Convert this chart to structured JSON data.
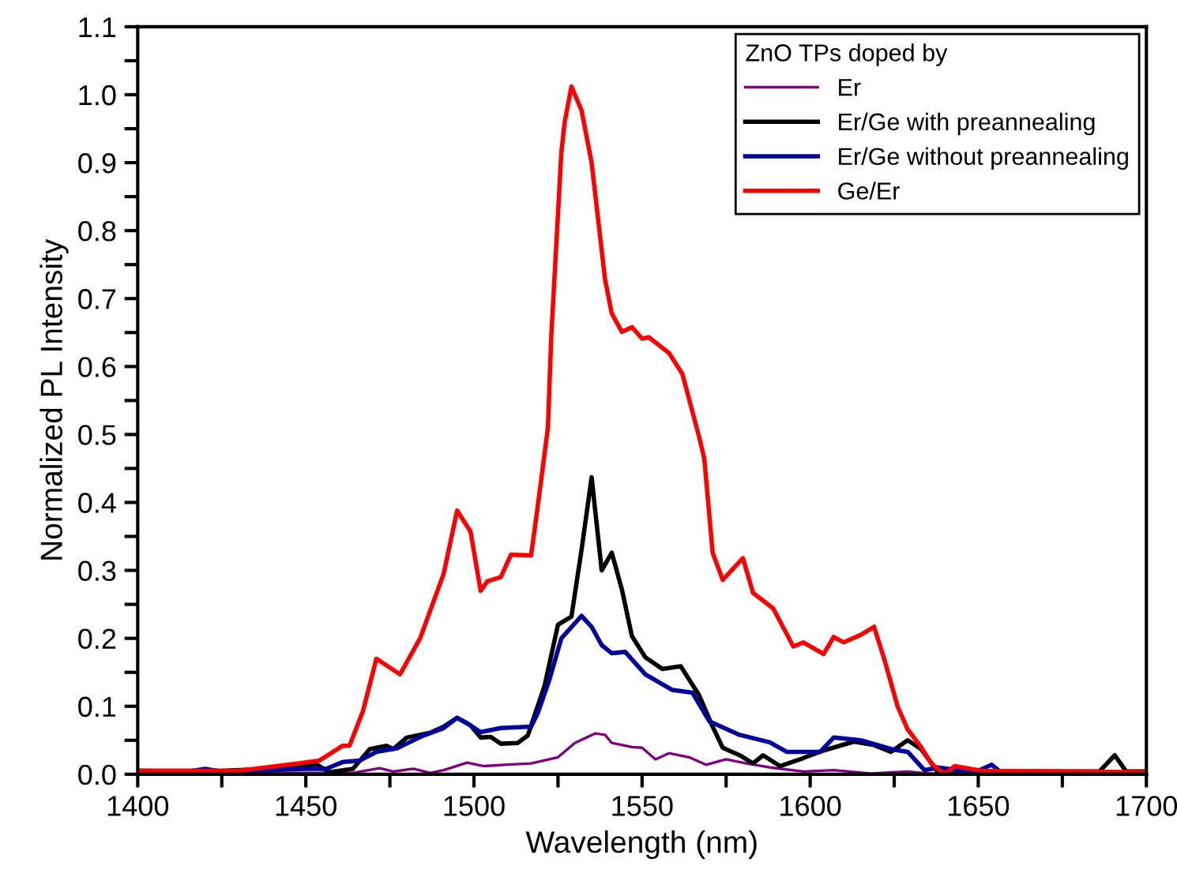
{
  "chart_data": {
    "type": "line",
    "xlabel": "Wavelength (nm)",
    "ylabel": "Normalized PL Intensity",
    "legend_title": "ZnO TPs doped by",
    "legend": "top right",
    "grid": false,
    "marker": "none",
    "line_style": "solid",
    "xlim": [
      1400,
      1700
    ],
    "ylim": [
      0,
      1.1
    ],
    "xticks": [
      1400,
      {
        "value": 1425,
        "label": null
      },
      1450,
      {
        "value": 1475,
        "label": null
      },
      1500,
      {
        "value": 1525,
        "label": null
      },
      1550,
      {
        "value": 1575,
        "label": null
      },
      1600,
      {
        "value": 1625,
        "label": null
      },
      1650,
      {
        "value": 1675,
        "label": null
      },
      1700
    ],
    "yticks": [
      {
        "value": 0,
        "label": "0.0"
      },
      {
        "value": 0.05,
        "label": null
      },
      {
        "value": 0.1,
        "label": "0.1"
      },
      {
        "value": 0.15,
        "label": null
      },
      {
        "value": 0.2,
        "label": "0.2"
      },
      {
        "value": 0.25,
        "label": null
      },
      {
        "value": 0.3,
        "label": "0.3"
      },
      {
        "value": 0.35,
        "label": null
      },
      {
        "value": 0.4,
        "label": "0.4"
      },
      {
        "value": 0.45,
        "label": null
      },
      {
        "value": 0.5,
        "label": "0.5"
      },
      {
        "value": 0.55,
        "label": null
      },
      {
        "value": 0.6,
        "label": "0.6"
      },
      {
        "value": 0.65,
        "label": null
      },
      {
        "value": 0.7,
        "label": "0.7"
      },
      {
        "value": 0.75,
        "label": null
      },
      {
        "value": 0.8,
        "label": "0.8"
      },
      {
        "value": 0.85,
        "label": null
      },
      {
        "value": 0.9,
        "label": "0.9"
      },
      {
        "value": 0.95,
        "label": null
      },
      {
        "value": 1.0,
        "label": "1.0"
      },
      {
        "value": 1.05,
        "label": null
      },
      {
        "value": 1.1,
        "label": "1.1"
      }
    ],
    "series": [
      {
        "name": "Er",
        "color": "#800080",
        "x": [
          1400,
          1430,
          1464,
          1472,
          1476,
          1482,
          1487,
          1491,
          1498,
          1503,
          1509,
          1517,
          1525,
          1530,
          1536,
          1539,
          1541,
          1547,
          1550,
          1554,
          1558,
          1564,
          1569,
          1575,
          1581,
          1588,
          1598,
          1607,
          1618,
          1629,
          1635,
          1700
        ],
        "values": [
          0.002,
          0.002,
          0.002,
          0.009,
          0.004,
          0.008,
          0.002,
          0.006,
          0.017,
          0.012,
          0.014,
          0.016,
          0.025,
          0.046,
          0.06,
          0.058,
          0.046,
          0.04,
          0.039,
          0.022,
          0.031,
          0.025,
          0.014,
          0.022,
          0.016,
          0.01,
          0.004,
          0.006,
          0.001,
          0.004,
          0.001,
          0.002
        ]
      },
      {
        "name": "Er/Ge with preannealing",
        "color": "#000000",
        "x": [
          1400,
          1425,
          1448,
          1453,
          1457,
          1464,
          1469,
          1474,
          1476,
          1480,
          1487,
          1491,
          1495,
          1499,
          1502,
          1505,
          1508,
          1513,
          1516,
          1521,
          1525,
          1529,
          1532,
          1535,
          1538,
          1541,
          1544,
          1547,
          1551,
          1556,
          1561.5,
          1567,
          1571,
          1574,
          1579,
          1583,
          1586,
          1591,
          1597.5,
          1604,
          1613,
          1619,
          1624,
          1629,
          1633,
          1638,
          1643,
          1657,
          1686,
          1690.6,
          1694,
          1700
        ],
        "values": [
          0.005,
          0.005,
          0.01,
          0.015,
          0.003,
          0.008,
          0.037,
          0.042,
          0.037,
          0.054,
          0.061,
          0.07,
          0.083,
          0.072,
          0.054,
          0.055,
          0.045,
          0.046,
          0.057,
          0.13,
          0.22,
          0.232,
          0.33,
          0.437,
          0.3,
          0.326,
          0.272,
          0.203,
          0.172,
          0.155,
          0.159,
          0.116,
          0.07,
          0.039,
          0.028,
          0.016,
          0.028,
          0.012,
          0.023,
          0.035,
          0.048,
          0.043,
          0.033,
          0.05,
          0.037,
          0.003,
          0.0,
          0.004,
          0.004,
          0.028,
          0.004,
          0.004
        ]
      },
      {
        "name": "Er/Ge without preannealing",
        "color": "#0000a0",
        "x": [
          1400,
          1415,
          1420,
          1425,
          1450,
          1456,
          1461,
          1466,
          1471,
          1477,
          1485,
          1491,
          1495,
          1498,
          1502,
          1508,
          1517,
          1519,
          1522.5,
          1526,
          1532,
          1535,
          1538,
          1541,
          1545,
          1551,
          1559,
          1565,
          1570,
          1579,
          1588,
          1593,
          1603,
          1607,
          1615,
          1625,
          1629,
          1634,
          1638,
          1644,
          1649,
          1654,
          1657,
          1700
        ],
        "values": [
          0.005,
          0.004,
          0.008,
          0.004,
          0.008,
          0.008,
          0.018,
          0.02,
          0.033,
          0.038,
          0.057,
          0.068,
          0.083,
          0.075,
          0.062,
          0.068,
          0.07,
          0.09,
          0.14,
          0.2,
          0.233,
          0.217,
          0.19,
          0.178,
          0.18,
          0.147,
          0.124,
          0.12,
          0.078,
          0.058,
          0.047,
          0.033,
          0.033,
          0.054,
          0.05,
          0.036,
          0.033,
          0.006,
          0.01,
          0.006,
          0.003,
          0.014,
          0.002,
          0.002
        ]
      },
      {
        "name": "Ge/Er",
        "color": "#ff0000",
        "x": [
          1400,
          1430,
          1448,
          1454,
          1461,
          1463,
          1467,
          1471,
          1478,
          1484,
          1491,
          1495,
          1499,
          1502,
          1504,
          1508,
          1511,
          1517,
          1519,
          1522,
          1523,
          1526,
          1527,
          1529,
          1532,
          1535,
          1539,
          1541,
          1544,
          1547,
          1550,
          1552,
          1558,
          1562,
          1567,
          1568.5,
          1571,
          1574,
          1580,
          1583,
          1589,
          1595,
          1598,
          1604,
          1607,
          1610,
          1615,
          1619,
          1622,
          1626,
          1629,
          1633,
          1636,
          1640,
          1643,
          1651,
          1700
        ],
        "values": [
          0.005,
          0.005,
          0.016,
          0.02,
          0.042,
          0.042,
          0.093,
          0.17,
          0.147,
          0.2,
          0.295,
          0.388,
          0.357,
          0.27,
          0.284,
          0.29,
          0.323,
          0.322,
          0.395,
          0.51,
          0.644,
          0.915,
          0.96,
          1.012,
          0.977,
          0.9,
          0.728,
          0.678,
          0.651,
          0.658,
          0.641,
          0.643,
          0.62,
          0.589,
          0.496,
          0.465,
          0.326,
          0.286,
          0.318,
          0.267,
          0.244,
          0.188,
          0.194,
          0.177,
          0.202,
          0.194,
          0.205,
          0.217,
          0.17,
          0.1,
          0.066,
          0.04,
          0.016,
          0.0,
          0.012,
          0.005,
          0.003
        ]
      }
    ]
  }
}
